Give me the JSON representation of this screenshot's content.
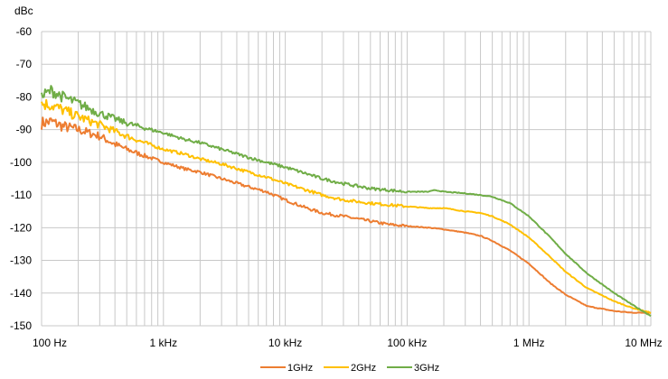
{
  "chart_data": {
    "type": "line",
    "title": "",
    "y_unit": "dBc",
    "xlabel": "",
    "ylabel": "dBc",
    "x_scale": "log",
    "xlim": [
      100,
      10000000
    ],
    "ylim": [
      -150,
      -60
    ],
    "grid": true,
    "legend_position": "bottom-center",
    "x_ticks": [
      {
        "value": 100,
        "label": "100 Hz"
      },
      {
        "value": 1000,
        "label": "1 kHz"
      },
      {
        "value": 10000,
        "label": "10 kHz"
      },
      {
        "value": 100000,
        "label": "100 kHz"
      },
      {
        "value": 1000000,
        "label": "1 MHz"
      },
      {
        "value": 10000000,
        "label": "10 MHz"
      }
    ],
    "y_ticks": [
      {
        "value": -60,
        "label": "-60"
      },
      {
        "value": -70,
        "label": "-70"
      },
      {
        "value": -80,
        "label": "-80"
      },
      {
        "value": -90,
        "label": "-90"
      },
      {
        "value": -100,
        "label": "-100"
      },
      {
        "value": -110,
        "label": "-110"
      },
      {
        "value": -120,
        "label": "-120"
      },
      {
        "value": -130,
        "label": "-130"
      },
      {
        "value": -140,
        "label": "-140"
      },
      {
        "value": -150,
        "label": "-150"
      }
    ],
    "series": [
      {
        "name": "1GHz",
        "color": "#ED7D31",
        "points": [
          [
            100,
            -88
          ],
          [
            120,
            -87.5
          ],
          [
            150,
            -89
          ],
          [
            200,
            -90
          ],
          [
            300,
            -92
          ],
          [
            400,
            -94.5
          ],
          [
            500,
            -96
          ],
          [
            700,
            -98
          ],
          [
            1000,
            -100
          ],
          [
            1500,
            -102
          ],
          [
            2000,
            -103
          ],
          [
            3000,
            -105
          ],
          [
            5000,
            -107.5
          ],
          [
            7000,
            -109
          ],
          [
            10000,
            -111.5
          ],
          [
            15000,
            -114
          ],
          [
            20000,
            -115.5
          ],
          [
            30000,
            -116.5
          ],
          [
            50000,
            -118
          ],
          [
            70000,
            -119
          ],
          [
            100000,
            -119.5
          ],
          [
            150000,
            -120
          ],
          [
            200000,
            -120.5
          ],
          [
            300000,
            -121.5
          ],
          [
            400000,
            -122.5
          ],
          [
            500000,
            -124
          ],
          [
            700000,
            -127
          ],
          [
            1000000,
            -131
          ],
          [
            1500000,
            -137
          ],
          [
            2000000,
            -140.5
          ],
          [
            3000000,
            -144
          ],
          [
            5000000,
            -145.5
          ],
          [
            7000000,
            -146
          ],
          [
            10000000,
            -146
          ]
        ]
      },
      {
        "name": "2GHz",
        "color": "#FFC000",
        "points": [
          [
            100,
            -82
          ],
          [
            120,
            -82.5
          ],
          [
            150,
            -84
          ],
          [
            200,
            -86
          ],
          [
            300,
            -88.5
          ],
          [
            500,
            -92
          ],
          [
            700,
            -94
          ],
          [
            1000,
            -96
          ],
          [
            1500,
            -97.5
          ],
          [
            2000,
            -99
          ],
          [
            3000,
            -100.5
          ],
          [
            5000,
            -103
          ],
          [
            7000,
            -104.5
          ],
          [
            10000,
            -106.5
          ],
          [
            15000,
            -108.5
          ],
          [
            20000,
            -110
          ],
          [
            30000,
            -111.5
          ],
          [
            50000,
            -112.5
          ],
          [
            70000,
            -113
          ],
          [
            100000,
            -113.5
          ],
          [
            150000,
            -114
          ],
          [
            200000,
            -114
          ],
          [
            300000,
            -115
          ],
          [
            400000,
            -115.5
          ],
          [
            500000,
            -116.5
          ],
          [
            700000,
            -119
          ],
          [
            1000000,
            -123
          ],
          [
            1500000,
            -129
          ],
          [
            2000000,
            -133.5
          ],
          [
            3000000,
            -138.5
          ],
          [
            5000000,
            -142.5
          ],
          [
            7000000,
            -144.5
          ],
          [
            10000000,
            -146
          ]
        ]
      },
      {
        "name": "3GHz",
        "color": "#70AD47",
        "points": [
          [
            100,
            -80
          ],
          [
            120,
            -78
          ],
          [
            150,
            -80
          ],
          [
            200,
            -82
          ],
          [
            300,
            -85
          ],
          [
            500,
            -88
          ],
          [
            700,
            -89.5
          ],
          [
            1000,
            -91
          ],
          [
            1500,
            -93
          ],
          [
            2000,
            -94
          ],
          [
            3000,
            -96
          ],
          [
            5000,
            -98.5
          ],
          [
            7000,
            -100
          ],
          [
            10000,
            -101.5
          ],
          [
            15000,
            -103.5
          ],
          [
            20000,
            -105
          ],
          [
            30000,
            -106.5
          ],
          [
            50000,
            -108
          ],
          [
            70000,
            -108.5
          ],
          [
            100000,
            -109
          ],
          [
            150000,
            -109
          ],
          [
            170000,
            -108.5
          ],
          [
            200000,
            -109
          ],
          [
            300000,
            -109.5
          ],
          [
            400000,
            -110
          ],
          [
            500000,
            -110.5
          ],
          [
            700000,
            -112.5
          ],
          [
            1000000,
            -116.5
          ],
          [
            1500000,
            -123
          ],
          [
            2000000,
            -128
          ],
          [
            3000000,
            -134
          ],
          [
            5000000,
            -140
          ],
          [
            7000000,
            -143.5
          ],
          [
            10000000,
            -147
          ]
        ]
      }
    ]
  }
}
